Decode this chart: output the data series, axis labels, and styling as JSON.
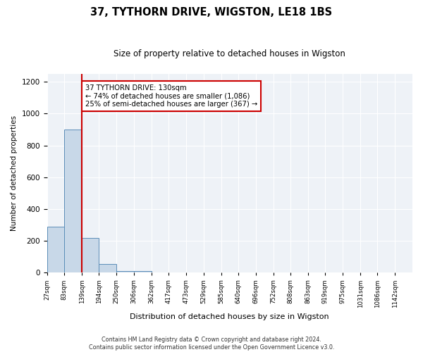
{
  "title": "37, TYTHORN DRIVE, WIGSTON, LE18 1BS",
  "subtitle": "Size of property relative to detached houses in Wigston",
  "xlabel": "Distribution of detached houses by size in Wigston",
  "ylabel": "Number of detached properties",
  "bin_labels": [
    "27sqm",
    "83sqm",
    "139sqm",
    "194sqm",
    "250sqm",
    "306sqm",
    "362sqm",
    "417sqm",
    "473sqm",
    "529sqm",
    "585sqm",
    "640sqm",
    "696sqm",
    "752sqm",
    "808sqm",
    "863sqm",
    "919sqm",
    "975sqm",
    "1031sqm",
    "1086sqm",
    "1142sqm"
  ],
  "bar_heights": [
    290,
    900,
    220,
    55,
    10,
    12,
    0,
    0,
    0,
    0,
    0,
    0,
    0,
    0,
    0,
    0,
    0,
    0,
    0,
    0
  ],
  "bar_color": "#c8d8e8",
  "bar_edge_color": "#5b8db8",
  "ylim": [
    0,
    1250
  ],
  "yticks": [
    0,
    200,
    400,
    600,
    800,
    1000,
    1200
  ],
  "annotation_text": "37 TYTHORN DRIVE: 130sqm\n← 74% of detached houses are smaller (1,086)\n25% of semi-detached houses are larger (367) →",
  "annotation_box_edge": "#cc0000",
  "red_line_color": "#cc0000",
  "footer_line1": "Contains HM Land Registry data © Crown copyright and database right 2024.",
  "footer_line2": "Contains public sector information licensed under the Open Government Licence v3.0.",
  "background_color": "#eef2f7",
  "bin_edges_values": [
    27,
    83,
    139,
    194,
    250,
    306,
    362,
    417,
    473,
    529,
    585,
    640,
    696,
    752,
    808,
    863,
    919,
    975,
    1031,
    1086,
    1142,
    1198
  ]
}
